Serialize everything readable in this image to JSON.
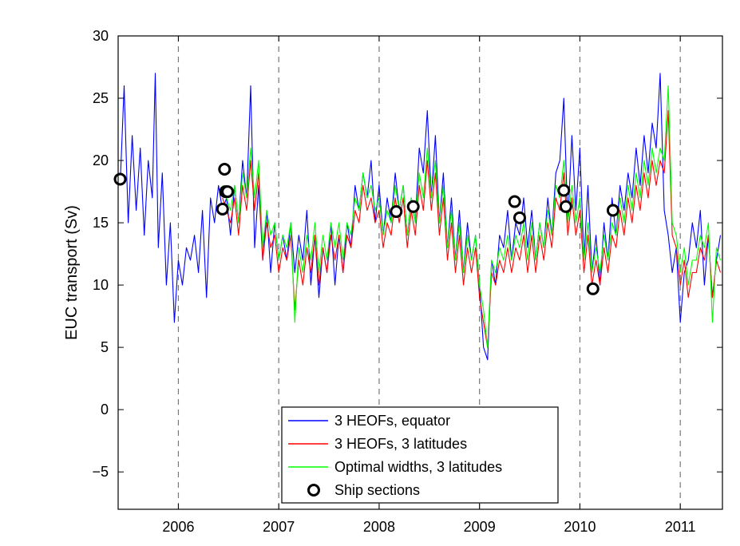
{
  "chart_data": {
    "type": "line",
    "title": "",
    "xlabel": "",
    "ylabel": "EUC transport (Sv)",
    "xlim": [
      2005.4,
      2011.42
    ],
    "ylim": [
      -8,
      30
    ],
    "x_ticks": [
      2006,
      2007,
      2008,
      2009,
      2010,
      2011
    ],
    "x_tick_labels": [
      "2006",
      "2007",
      "2008",
      "2009",
      "2010",
      "2011"
    ],
    "y_ticks": [
      -5,
      0,
      5,
      10,
      15,
      20,
      25,
      30
    ],
    "y_tick_labels": [
      "−5",
      "0",
      "5",
      "10",
      "15",
      "20",
      "25",
      "30"
    ],
    "vertical_dashed_lines_at": [
      2006,
      2007,
      2008,
      2009,
      2010,
      2011
    ],
    "grid": false,
    "legend_position": "bottom-center",
    "series": [
      {
        "name": "3 HEOFs, equator",
        "color": "#0000ff",
        "x": [
          2005.42,
          2005.46,
          2005.5,
          2005.54,
          2005.58,
          2005.62,
          2005.66,
          2005.7,
          2005.74,
          2005.77,
          2005.8,
          2005.84,
          2005.88,
          2005.92,
          2005.96,
          2006.0,
          2006.04,
          2006.08,
          2006.12,
          2006.16,
          2006.2,
          2006.24,
          2006.28,
          2006.32,
          2006.36,
          2006.4,
          2006.44,
          2006.48,
          2006.52,
          2006.56,
          2006.6,
          2006.64,
          2006.68,
          2006.72,
          2006.76,
          2006.8,
          2006.84,
          2006.88,
          2006.92,
          2006.96,
          2007.0,
          2007.04,
          2007.08,
          2007.12,
          2007.16,
          2007.2,
          2007.24,
          2007.28,
          2007.32,
          2007.36,
          2007.4,
          2007.44,
          2007.48,
          2007.52,
          2007.56,
          2007.6,
          2007.64,
          2007.68,
          2007.72,
          2007.76,
          2007.8,
          2007.84,
          2007.88,
          2007.92,
          2007.96,
          2008.0,
          2008.04,
          2008.08,
          2008.12,
          2008.16,
          2008.2,
          2008.24,
          2008.28,
          2008.32,
          2008.36,
          2008.4,
          2008.44,
          2008.48,
          2008.52,
          2008.56,
          2008.6,
          2008.64,
          2008.68,
          2008.72,
          2008.76,
          2008.8,
          2008.84,
          2008.88,
          2008.92,
          2008.96,
          2009.0,
          2009.04,
          2009.08,
          2009.12,
          2009.16,
          2009.2,
          2009.24,
          2009.28,
          2009.32,
          2009.36,
          2009.4,
          2009.44,
          2009.48,
          2009.52,
          2009.56,
          2009.6,
          2009.64,
          2009.68,
          2009.72,
          2009.76,
          2009.8,
          2009.84,
          2009.88,
          2009.92,
          2009.96,
          2010.0,
          2010.04,
          2010.08,
          2010.12,
          2010.16,
          2010.2,
          2010.24,
          2010.28,
          2010.32,
          2010.36,
          2010.4,
          2010.44,
          2010.48,
          2010.52,
          2010.56,
          2010.6,
          2010.64,
          2010.68,
          2010.72,
          2010.76,
          2010.8,
          2010.84,
          2010.88,
          2010.92,
          2010.96,
          2011.0,
          2011.04,
          2011.08,
          2011.12,
          2011.16,
          2011.2,
          2011.24,
          2011.28,
          2011.32,
          2011.36,
          2011.4
        ],
        "y": [
          18,
          26,
          15,
          22,
          16,
          21,
          14,
          20,
          17,
          27,
          13,
          19,
          10,
          15,
          7,
          12,
          10,
          13,
          12,
          14,
          11,
          16,
          9,
          17,
          15,
          18,
          16,
          17,
          14,
          18,
          15,
          20,
          17,
          26,
          13,
          18,
          12,
          16,
          11,
          15,
          12,
          14,
          12,
          15,
          11,
          14,
          12,
          16,
          10,
          14,
          9,
          13,
          11,
          15,
          10,
          14,
          11,
          15,
          13,
          18,
          16,
          19,
          17,
          20,
          15,
          18,
          14,
          17,
          15,
          19,
          16,
          18,
          14,
          17,
          15,
          21,
          19,
          24,
          17,
          22,
          15,
          19,
          13,
          17,
          12,
          16,
          11,
          15,
          12,
          14,
          10,
          5,
          4,
          12,
          10,
          14,
          13,
          16,
          12,
          15,
          14,
          17,
          13,
          16,
          12,
          15,
          13,
          17,
          14,
          19,
          20,
          25,
          15,
          22,
          16,
          21,
          12,
          18,
          11,
          14,
          10,
          15,
          12,
          17,
          14,
          18,
          16,
          19,
          17,
          21,
          18,
          22,
          19,
          23,
          21,
          27,
          16,
          14,
          11,
          13,
          7,
          11,
          12,
          15,
          13,
          16,
          10,
          14,
          9,
          12,
          14
        ]
      },
      {
        "name": "3 HEOFs, 3 latitudes",
        "color": "#ff0000",
        "x": [
          2006.44,
          2006.48,
          2006.52,
          2006.56,
          2006.6,
          2006.64,
          2006.68,
          2006.72,
          2006.76,
          2006.8,
          2006.84,
          2006.88,
          2006.92,
          2006.96,
          2007.0,
          2007.04,
          2007.08,
          2007.12,
          2007.16,
          2007.2,
          2007.24,
          2007.28,
          2007.32,
          2007.36,
          2007.4,
          2007.44,
          2007.48,
          2007.52,
          2007.56,
          2007.6,
          2007.64,
          2007.68,
          2007.72,
          2007.76,
          2007.8,
          2007.84,
          2007.88,
          2007.92,
          2007.96,
          2008.0,
          2008.04,
          2008.08,
          2008.12,
          2008.16,
          2008.2,
          2008.24,
          2008.28,
          2008.32,
          2008.36,
          2008.4,
          2008.44,
          2008.48,
          2008.52,
          2008.56,
          2008.6,
          2008.64,
          2008.68,
          2008.72,
          2008.76,
          2008.8,
          2008.84,
          2008.88,
          2008.92,
          2008.96,
          2009.0,
          2009.04,
          2009.08,
          2009.12,
          2009.16,
          2009.2,
          2009.24,
          2009.28,
          2009.32,
          2009.36,
          2009.4,
          2009.44,
          2009.48,
          2009.52,
          2009.56,
          2009.6,
          2009.64,
          2009.68,
          2009.72,
          2009.76,
          2009.8,
          2009.84,
          2009.88,
          2009.92,
          2009.96,
          2010.0,
          2010.04,
          2010.08,
          2010.12,
          2010.16,
          2010.2,
          2010.24,
          2010.28,
          2010.32,
          2010.36,
          2010.4,
          2010.44,
          2010.48,
          2010.52,
          2010.56,
          2010.6,
          2010.64,
          2010.68,
          2010.72,
          2010.76,
          2010.8,
          2010.84,
          2010.88,
          2010.92,
          2010.96,
          2011.0,
          2011.04,
          2011.08,
          2011.12,
          2011.16,
          2011.2,
          2011.24,
          2011.28,
          2011.32,
          2011.36,
          2011.4
        ],
        "y": [
          17,
          16,
          15,
          17,
          14,
          18,
          16,
          20,
          16,
          19,
          12,
          15,
          13,
          14,
          11,
          13,
          12,
          14,
          8,
          12,
          10,
          13,
          11,
          14,
          10,
          13,
          11,
          14,
          12,
          14,
          11,
          14,
          13,
          16,
          15,
          18,
          16,
          17,
          15,
          16,
          13,
          15,
          14,
          17,
          15,
          17,
          13,
          16,
          14,
          18,
          16,
          20,
          16,
          19,
          14,
          17,
          12,
          15,
          11,
          14,
          10,
          13,
          11,
          13,
          9,
          7,
          5,
          11,
          10,
          12,
          11,
          13,
          11,
          13,
          12,
          14,
          11,
          14,
          11,
          14,
          12,
          15,
          13,
          17,
          16,
          19,
          14,
          17,
          14,
          16,
          11,
          14,
          10,
          12,
          10,
          13,
          11,
          14,
          13,
          16,
          14,
          17,
          15,
          18,
          16,
          19,
          17,
          20,
          18,
          20,
          19,
          24,
          14,
          13,
          10,
          12,
          9,
          11,
          11,
          13,
          12,
          14,
          9,
          12,
          11
        ]
      },
      {
        "name": "Optimal widths, 3 latitudes",
        "color": "#00ff00",
        "x": [
          2006.44,
          2006.48,
          2006.52,
          2006.56,
          2006.6,
          2006.64,
          2006.68,
          2006.72,
          2006.76,
          2006.8,
          2006.84,
          2006.88,
          2006.92,
          2006.96,
          2007.0,
          2007.04,
          2007.08,
          2007.12,
          2007.16,
          2007.2,
          2007.24,
          2007.28,
          2007.32,
          2007.36,
          2007.4,
          2007.44,
          2007.48,
          2007.52,
          2007.56,
          2007.6,
          2007.64,
          2007.68,
          2007.72,
          2007.76,
          2007.8,
          2007.84,
          2007.88,
          2007.92,
          2007.96,
          2008.0,
          2008.04,
          2008.08,
          2008.12,
          2008.16,
          2008.2,
          2008.24,
          2008.28,
          2008.32,
          2008.36,
          2008.4,
          2008.44,
          2008.48,
          2008.52,
          2008.56,
          2008.6,
          2008.64,
          2008.68,
          2008.72,
          2008.76,
          2008.8,
          2008.84,
          2008.88,
          2008.92,
          2008.96,
          2009.0,
          2009.04,
          2009.08,
          2009.12,
          2009.16,
          2009.2,
          2009.24,
          2009.28,
          2009.32,
          2009.36,
          2009.4,
          2009.44,
          2009.48,
          2009.52,
          2009.56,
          2009.6,
          2009.64,
          2009.68,
          2009.72,
          2009.76,
          2009.8,
          2009.84,
          2009.88,
          2009.92,
          2009.96,
          2010.0,
          2010.04,
          2010.08,
          2010.12,
          2010.16,
          2010.2,
          2010.24,
          2010.28,
          2010.32,
          2010.36,
          2010.4,
          2010.44,
          2010.48,
          2010.52,
          2010.56,
          2010.6,
          2010.64,
          2010.68,
          2010.72,
          2010.76,
          2010.8,
          2010.84,
          2010.88,
          2010.92,
          2010.96,
          2011.0,
          2011.04,
          2011.08,
          2011.12,
          2011.16,
          2011.2,
          2011.24,
          2011.28,
          2011.32,
          2011.36,
          2011.4
        ],
        "y": [
          18,
          17,
          16,
          18,
          15,
          19,
          17,
          21,
          17,
          20,
          13,
          16,
          14,
          15,
          12,
          14,
          13,
          15,
          7,
          13,
          11,
          14,
          12,
          15,
          11,
          14,
          12,
          15,
          13,
          15,
          12,
          15,
          14,
          17,
          16,
          19,
          17,
          18,
          16,
          17,
          14,
          16,
          15,
          18,
          16,
          18,
          14,
          17,
          15,
          19,
          17,
          21,
          17,
          20,
          15,
          18,
          13,
          16,
          12,
          15,
          11,
          14,
          12,
          14,
          10,
          8,
          5,
          12,
          11,
          13,
          12,
          14,
          12,
          14,
          13,
          15,
          12,
          15,
          12,
          15,
          13,
          16,
          14,
          18,
          17,
          20,
          15,
          18,
          15,
          17,
          12,
          15,
          11,
          13,
          11,
          14,
          12,
          15,
          14,
          17,
          15,
          18,
          16,
          19,
          17,
          20,
          18,
          21,
          19,
          21,
          20,
          26,
          15,
          14,
          11,
          13,
          10,
          12,
          12,
          14,
          13,
          15,
          7,
          13,
          12
        ]
      },
      {
        "name": "Ship sections",
        "type": "scatter",
        "marker": "circle",
        "color": "#000000",
        "x": [
          2005.42,
          2006.44,
          2006.46,
          2006.47,
          2006.49,
          2008.17,
          2008.34,
          2009.35,
          2009.4,
          2009.84,
          2009.86,
          2010.13,
          2010.33
        ],
        "y": [
          18.5,
          16.1,
          19.3,
          17.5,
          17.5,
          15.9,
          16.3,
          16.7,
          15.4,
          17.6,
          16.3,
          9.7,
          16.0
        ]
      }
    ]
  }
}
